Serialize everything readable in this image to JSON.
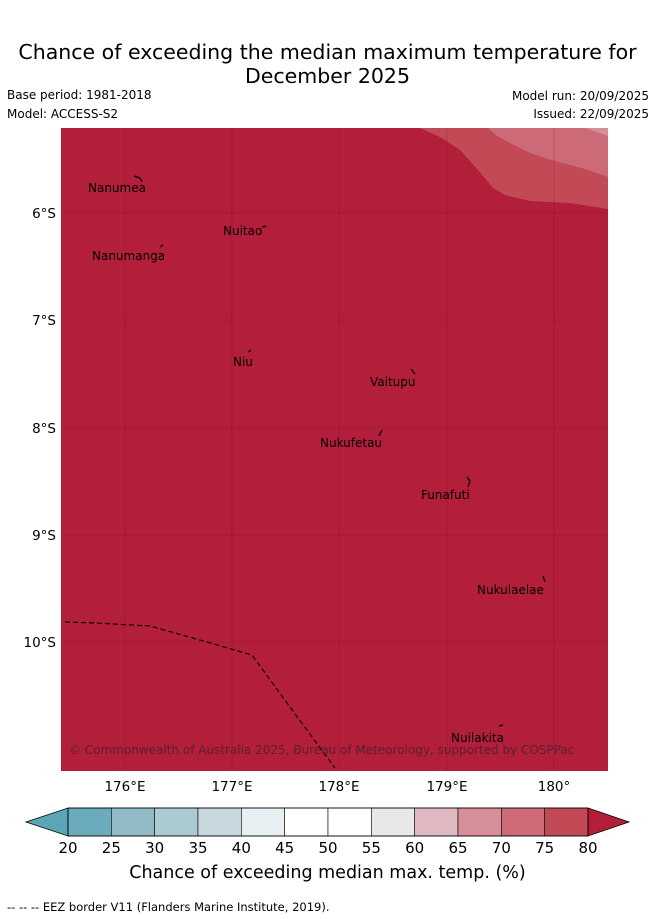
{
  "header": {
    "title_line1": "Chance of exceeding the median maximum temperature for",
    "title_line2": "December 2025",
    "base_period": "Base period: 1981-2018",
    "model": "Model: ACCESS-S2",
    "model_run": "Model run: 20/09/2025",
    "issued": "Issued: 22/09/2025"
  },
  "map": {
    "lat_labels": [
      "6°S",
      "7°S",
      "8°S",
      "9°S",
      "10°S"
    ],
    "lon_labels": [
      "176°E",
      "177°E",
      "178°E",
      "179°E",
      "180°"
    ],
    "islands": [
      {
        "name": "Nanumea"
      },
      {
        "name": "Nuitao"
      },
      {
        "name": "Nanumanga"
      },
      {
        "name": "Niu"
      },
      {
        "name": "Vaitupu"
      },
      {
        "name": "Nukufetau"
      },
      {
        "name": "Funafuti"
      },
      {
        "name": "Nukulaelae"
      },
      {
        "name": "Nuilakita"
      }
    ],
    "copyright": "© Commonwealth of Australia 2025, Bureau of Meteorology, supported by COSPPac",
    "colors": {
      "dominant": "#b31e3a",
      "band_75_80": "#c24a57",
      "band_70_75": "#cc6b77"
    }
  },
  "colorbar": {
    "ticks": [
      "20",
      "25",
      "30",
      "35",
      "40",
      "45",
      "50",
      "55",
      "60",
      "65",
      "70",
      "75",
      "80"
    ],
    "title": "Chance of exceeding median max. temp. (%)",
    "colors": [
      "#6aacbb",
      "#8fbac6",
      "#aacbd1",
      "#c7d9de",
      "#e8f0f3",
      "#ffffff",
      "#ffffff",
      "#e8e8ea",
      "#e0b8c1",
      "#d68e99",
      "#cc6b77",
      "#c24a57"
    ],
    "under_color": "#5aa6b6",
    "over_color": "#b31e3a"
  },
  "footnote": "-- -- -- EEZ border V11 (Flanders Marine Institute, 2019)."
}
